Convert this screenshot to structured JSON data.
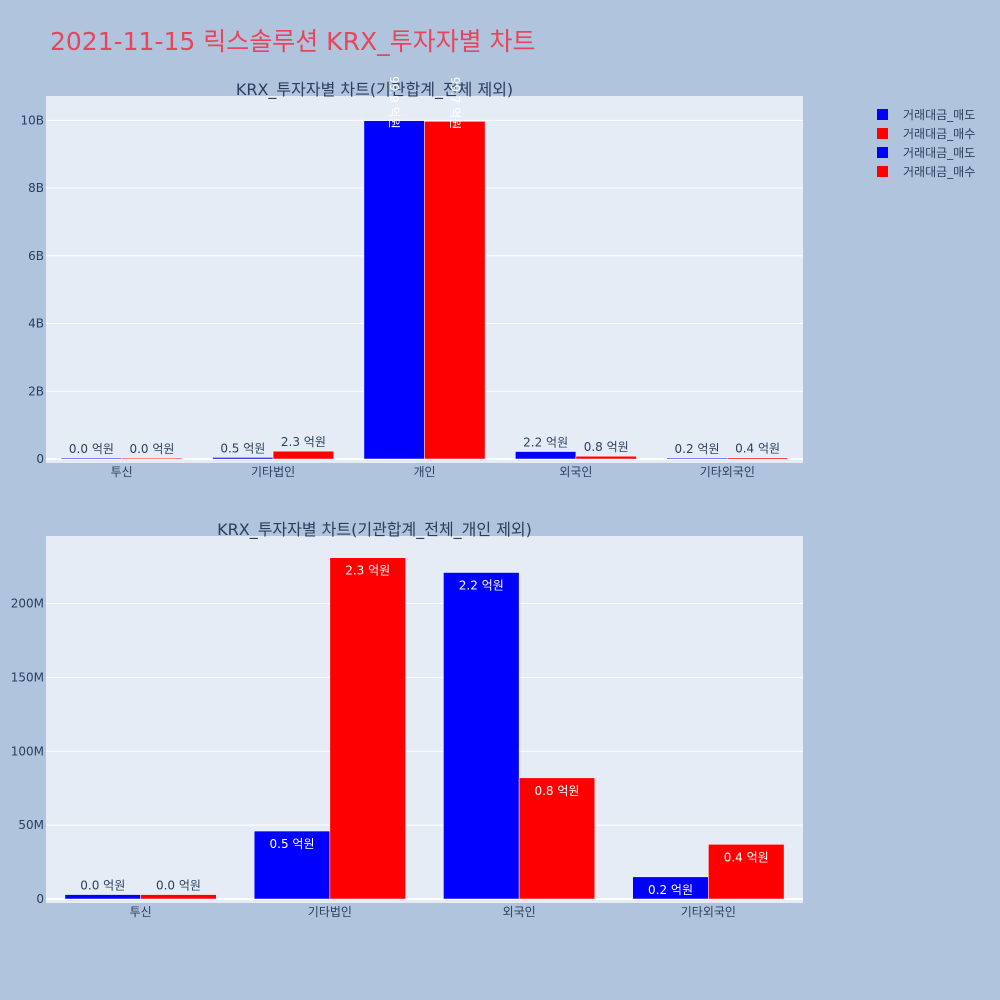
{
  "title": "2021-11-15 릭스솔루션 KRX_투자자별 차트",
  "colors": {
    "sell": "#0000ff",
    "buy": "#ff0000",
    "plot_bg": "#e5ecf6",
    "page_bg": "#b0c4de"
  },
  "legend": [
    {
      "name": "거래대금_매도",
      "color": "#0000ff"
    },
    {
      "name": "거래대금_매수",
      "color": "#ff0000"
    },
    {
      "name": "거래대금_매도",
      "color": "#0000ff"
    },
    {
      "name": "거래대금_매수",
      "color": "#ff0000"
    }
  ],
  "chart_data": [
    {
      "type": "bar",
      "title": "KRX_투자자별 차트(기관합계_전체 제외)",
      "categories": [
        "투신",
        "기타법인",
        "개인",
        "외국인",
        "기타외국인"
      ],
      "ylim": [
        0,
        10600000000
      ],
      "yticks": [
        0,
        2000000000,
        4000000000,
        6000000000,
        8000000000,
        10000000000
      ],
      "yticklabels": [
        "0",
        "2B",
        "4B",
        "6B",
        "8B",
        "10B"
      ],
      "series": [
        {
          "name": "거래대금_매도",
          "color": "#0000ff",
          "values": [
            3000000,
            46000000,
            9990000000,
            221000000,
            15000000
          ],
          "labels": [
            "0.0 억원",
            "0.5 억원",
            "99.9 억원",
            "2.2 억원",
            "0.2 억원"
          ],
          "label_inside": [
            false,
            false,
            true,
            false,
            false
          ]
        },
        {
          "name": "거래대금_매수",
          "color": "#ff0000",
          "values": [
            3000000,
            231000000,
            9970000000,
            82000000,
            37000000
          ],
          "labels": [
            "0.0 억원",
            "2.3 억원",
            "99.7 억원",
            "0.8 억원",
            "0.4 억원"
          ],
          "label_inside": [
            false,
            false,
            true,
            false,
            false
          ]
        }
      ]
    },
    {
      "type": "bar",
      "title": "KRX_투자자별 차트(기관합계_전체_개인 제외)",
      "categories": [
        "투신",
        "기타법인",
        "외국인",
        "기타외국인"
      ],
      "ylim": [
        0,
        243000000
      ],
      "yticks": [
        0,
        50000000,
        100000000,
        150000000,
        200000000
      ],
      "yticklabels": [
        "0",
        "50M",
        "100M",
        "150M",
        "200M"
      ],
      "series": [
        {
          "name": "거래대금_매도",
          "color": "#0000ff",
          "values": [
            3000000,
            46000000,
            221000000,
            15000000
          ],
          "labels": [
            "0.0 억원",
            "0.5 억원",
            "2.2 억원",
            "0.2 억원"
          ],
          "label_inside": [
            false,
            true,
            true,
            true
          ]
        },
        {
          "name": "거래대금_매수",
          "color": "#ff0000",
          "values": [
            3000000,
            231000000,
            82000000,
            37000000
          ],
          "labels": [
            "0.0 억원",
            "2.3 억원",
            "0.8 억원",
            "0.4 억원"
          ],
          "label_inside": [
            false,
            true,
            true,
            true
          ]
        }
      ]
    }
  ]
}
